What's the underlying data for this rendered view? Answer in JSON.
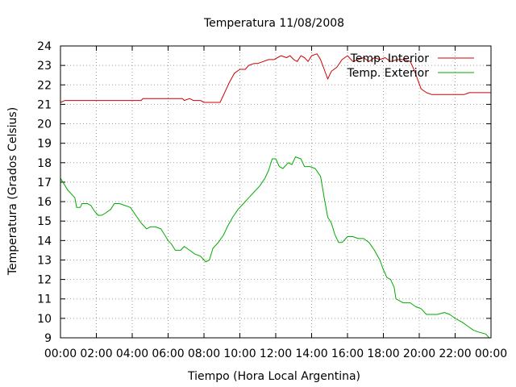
{
  "chart_data": {
    "type": "line",
    "title": "Temperatura 11/08/2008",
    "xlabel": "Tiempo (Hora Local Argentina)",
    "ylabel": "Temperatura (Grados Celsius)",
    "xlim": [
      0,
      24
    ],
    "ylim": [
      9,
      24
    ],
    "grid": true,
    "legend_position": "top-right",
    "x_tick_labels": [
      "00:00",
      "02:00",
      "04:00",
      "06:00",
      "08:00",
      "10:00",
      "12:00",
      "14:00",
      "16:00",
      "18:00",
      "20:00",
      "22:00",
      "00:00"
    ],
    "y_tick_labels": [
      "9",
      "10",
      "11",
      "12",
      "13",
      "14",
      "15",
      "16",
      "17",
      "18",
      "19",
      "20",
      "21",
      "22",
      "23",
      "24"
    ],
    "series": [
      {
        "name": "Temp. Interior",
        "color": "#cc0000",
        "points": [
          [
            0,
            21.1
          ],
          [
            0.25,
            21.2
          ],
          [
            1,
            21.2
          ],
          [
            2,
            21.2
          ],
          [
            3,
            21.2
          ],
          [
            4,
            21.2
          ],
          [
            4.5,
            21.2
          ],
          [
            4.6,
            21.3
          ],
          [
            5,
            21.3
          ],
          [
            6,
            21.3
          ],
          [
            6.8,
            21.3
          ],
          [
            6.9,
            21.2
          ],
          [
            7.2,
            21.3
          ],
          [
            7.4,
            21.2
          ],
          [
            7.8,
            21.2
          ],
          [
            8,
            21.1
          ],
          [
            8.3,
            21.1
          ],
          [
            8.6,
            21.1
          ],
          [
            8.9,
            21.1
          ],
          [
            9.1,
            21.5
          ],
          [
            9.4,
            22.1
          ],
          [
            9.7,
            22.6
          ],
          [
            10,
            22.8
          ],
          [
            10.3,
            22.8
          ],
          [
            10.5,
            23.0
          ],
          [
            10.8,
            23.1
          ],
          [
            11,
            23.1
          ],
          [
            11.3,
            23.2
          ],
          [
            11.6,
            23.3
          ],
          [
            11.9,
            23.3
          ],
          [
            12.1,
            23.4
          ],
          [
            12.3,
            23.5
          ],
          [
            12.6,
            23.4
          ],
          [
            12.8,
            23.5
          ],
          [
            13,
            23.3
          ],
          [
            13.2,
            23.2
          ],
          [
            13.4,
            23.5
          ],
          [
            13.6,
            23.4
          ],
          [
            13.8,
            23.2
          ],
          [
            14,
            23.5
          ],
          [
            14.3,
            23.6
          ],
          [
            14.5,
            23.3
          ],
          [
            14.7,
            22.8
          ],
          [
            14.9,
            22.3
          ],
          [
            15.1,
            22.7
          ],
          [
            15.4,
            22.9
          ],
          [
            15.7,
            23.3
          ],
          [
            16,
            23.5
          ],
          [
            16.3,
            23.2
          ],
          [
            16.6,
            23.3
          ],
          [
            16.9,
            23.4
          ],
          [
            17.2,
            23.2
          ],
          [
            17.5,
            23.4
          ],
          [
            17.8,
            23.3
          ],
          [
            18.1,
            23.4
          ],
          [
            18.4,
            23.2
          ],
          [
            18.8,
            23.3
          ],
          [
            19.2,
            23.3
          ],
          [
            19.5,
            23.2
          ],
          [
            19.7,
            22.8
          ],
          [
            19.9,
            22.3
          ],
          [
            20.1,
            21.8
          ],
          [
            20.4,
            21.6
          ],
          [
            20.7,
            21.5
          ],
          [
            21,
            21.5
          ],
          [
            21.5,
            21.5
          ],
          [
            22,
            21.5
          ],
          [
            22.5,
            21.5
          ],
          [
            22.8,
            21.6
          ],
          [
            23.3,
            21.6
          ],
          [
            24,
            21.6
          ]
        ]
      },
      {
        "name": "Temp. Exterior",
        "color": "#00aa00",
        "points": [
          [
            0,
            17.2
          ],
          [
            0.2,
            16.9
          ],
          [
            0.4,
            16.6
          ],
          [
            0.6,
            16.4
          ],
          [
            0.8,
            16.2
          ],
          [
            0.9,
            15.7
          ],
          [
            1.1,
            15.7
          ],
          [
            1.2,
            15.9
          ],
          [
            1.5,
            15.9
          ],
          [
            1.7,
            15.8
          ],
          [
            1.9,
            15.5
          ],
          [
            2.1,
            15.3
          ],
          [
            2.3,
            15.3
          ],
          [
            2.5,
            15.4
          ],
          [
            2.8,
            15.6
          ],
          [
            3,
            15.9
          ],
          [
            3.3,
            15.9
          ],
          [
            3.6,
            15.8
          ],
          [
            3.9,
            15.7
          ],
          [
            4.2,
            15.3
          ],
          [
            4.5,
            14.9
          ],
          [
            4.8,
            14.6
          ],
          [
            5,
            14.7
          ],
          [
            5.3,
            14.7
          ],
          [
            5.6,
            14.6
          ],
          [
            5.8,
            14.3
          ],
          [
            6,
            14.0
          ],
          [
            6.2,
            13.8
          ],
          [
            6.4,
            13.5
          ],
          [
            6.7,
            13.5
          ],
          [
            6.9,
            13.7
          ],
          [
            7.2,
            13.5
          ],
          [
            7.5,
            13.3
          ],
          [
            7.8,
            13.2
          ],
          [
            8.1,
            12.9
          ],
          [
            8.3,
            13.0
          ],
          [
            8.5,
            13.6
          ],
          [
            8.8,
            13.9
          ],
          [
            9.1,
            14.3
          ],
          [
            9.3,
            14.7
          ],
          [
            9.6,
            15.2
          ],
          [
            9.9,
            15.6
          ],
          [
            10.2,
            15.9
          ],
          [
            10.5,
            16.2
          ],
          [
            10.8,
            16.5
          ],
          [
            11.1,
            16.8
          ],
          [
            11.4,
            17.2
          ],
          [
            11.6,
            17.6
          ],
          [
            11.8,
            18.2
          ],
          [
            12,
            18.2
          ],
          [
            12.2,
            17.8
          ],
          [
            12.4,
            17.7
          ],
          [
            12.7,
            18.0
          ],
          [
            12.9,
            17.9
          ],
          [
            13.1,
            18.3
          ],
          [
            13.4,
            18.2
          ],
          [
            13.6,
            17.8
          ],
          [
            13.9,
            17.8
          ],
          [
            14.2,
            17.7
          ],
          [
            14.5,
            17.3
          ],
          [
            14.7,
            16.2
          ],
          [
            14.9,
            15.2
          ],
          [
            15.1,
            14.9
          ],
          [
            15.3,
            14.3
          ],
          [
            15.5,
            13.9
          ],
          [
            15.7,
            13.9
          ],
          [
            16,
            14.2
          ],
          [
            16.3,
            14.2
          ],
          [
            16.6,
            14.1
          ],
          [
            16.9,
            14.1
          ],
          [
            17.2,
            13.9
          ],
          [
            17.5,
            13.5
          ],
          [
            17.8,
            13.0
          ],
          [
            18,
            12.5
          ],
          [
            18.2,
            12.1
          ],
          [
            18.4,
            12.0
          ],
          [
            18.6,
            11.6
          ],
          [
            18.7,
            11.0
          ],
          [
            18.9,
            10.9
          ],
          [
            19.1,
            10.8
          ],
          [
            19.5,
            10.8
          ],
          [
            19.8,
            10.6
          ],
          [
            20.1,
            10.5
          ],
          [
            20.4,
            10.2
          ],
          [
            20.7,
            10.2
          ],
          [
            21,
            10.2
          ],
          [
            21.4,
            10.3
          ],
          [
            21.7,
            10.2
          ],
          [
            22,
            10.0
          ],
          [
            22.4,
            9.8
          ],
          [
            22.7,
            9.6
          ],
          [
            23,
            9.4
          ],
          [
            23.3,
            9.3
          ],
          [
            23.7,
            9.2
          ],
          [
            23.9,
            9.0
          ],
          [
            24,
            9.0
          ]
        ]
      }
    ]
  }
}
